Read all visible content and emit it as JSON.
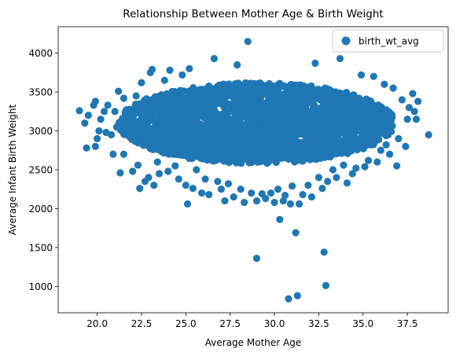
{
  "chart_data": {
    "type": "scatter",
    "title": "Relationship Between Mother Age & Birth Weight",
    "xlabel": "Average Mother Age",
    "ylabel": "Average Infant Birth Weight",
    "xlim": [
      17.8,
      39.8
    ],
    "ylim": [
      660,
      4340
    ],
    "xticks": [
      "20.0",
      "22.5",
      "25.0",
      "27.5",
      "30.0",
      "32.5",
      "35.0",
      "37.5"
    ],
    "xtick_values": [
      20.0,
      22.5,
      25.0,
      27.5,
      30.0,
      32.5,
      35.0,
      37.5
    ],
    "yticks": [
      "1000",
      "1500",
      "2000",
      "2500",
      "3000",
      "3500",
      "4000"
    ],
    "ytick_values": [
      1000,
      1500,
      2000,
      2500,
      3000,
      3500,
      4000
    ],
    "grid": false,
    "legend": {
      "placement": "top-right",
      "entries": [
        "birth_wt_avg"
      ]
    },
    "colors": {
      "marker": "#1f77b4"
    },
    "cluster": {
      "description_values": {
        "x_center": 29.0,
        "x_half_width": 7.8,
        "y_center": 3100,
        "y_half_height": 520
      }
    },
    "series": [
      {
        "name": "birth_wt_avg",
        "points": [
          [
            19.0,
            3260
          ],
          [
            19.3,
            3100
          ],
          [
            19.4,
            2780
          ],
          [
            19.5,
            3200
          ],
          [
            19.8,
            3330
          ],
          [
            19.9,
            2800
          ],
          [
            19.9,
            3380
          ],
          [
            20.0,
            2900
          ],
          [
            20.1,
            3000
          ],
          [
            20.2,
            3150
          ],
          [
            20.4,
            3250
          ],
          [
            20.5,
            2980
          ],
          [
            20.6,
            3330
          ],
          [
            20.8,
            2950
          ],
          [
            20.9,
            2700
          ],
          [
            21.0,
            3250
          ],
          [
            21.1,
            3050
          ],
          [
            21.2,
            3510
          ],
          [
            21.3,
            2460
          ],
          [
            21.5,
            3420
          ],
          [
            21.5,
            2700
          ],
          [
            21.7,
            3200
          ],
          [
            21.8,
            2950
          ],
          [
            22.0,
            2480
          ],
          [
            22.2,
            3450
          ],
          [
            22.3,
            2560
          ],
          [
            22.4,
            2260
          ],
          [
            22.5,
            3620
          ],
          [
            22.7,
            2350
          ],
          [
            22.9,
            2400
          ],
          [
            23.0,
            3750
          ],
          [
            23.1,
            3790
          ],
          [
            23.2,
            2300
          ],
          [
            23.4,
            2600
          ],
          [
            23.5,
            2450
          ],
          [
            23.8,
            3650
          ],
          [
            24.0,
            2480
          ],
          [
            24.1,
            3780
          ],
          [
            24.3,
            2700
          ],
          [
            24.4,
            2550
          ],
          [
            24.6,
            2380
          ],
          [
            24.8,
            3720
          ],
          [
            25.0,
            2300
          ],
          [
            25.1,
            2060
          ],
          [
            25.2,
            3800
          ],
          [
            25.4,
            2260
          ],
          [
            25.6,
            2500
          ],
          [
            25.9,
            2200
          ],
          [
            26.1,
            2380
          ],
          [
            26.3,
            2180
          ],
          [
            26.6,
            3930
          ],
          [
            26.8,
            2350
          ],
          [
            27.0,
            2250
          ],
          [
            27.2,
            2100
          ],
          [
            27.4,
            2320
          ],
          [
            27.7,
            2150
          ],
          [
            27.9,
            3850
          ],
          [
            28.1,
            2250
          ],
          [
            28.3,
            2080
          ],
          [
            28.5,
            4150
          ],
          [
            28.7,
            2200
          ],
          [
            29.0,
            2100
          ],
          [
            29.0,
            1360
          ],
          [
            29.3,
            2190
          ],
          [
            29.5,
            2130
          ],
          [
            29.8,
            2200
          ],
          [
            30.0,
            2080
          ],
          [
            30.2,
            2250
          ],
          [
            30.3,
            1860
          ],
          [
            30.5,
            2100
          ],
          [
            30.6,
            2170
          ],
          [
            30.8,
            840
          ],
          [
            30.9,
            2060
          ],
          [
            31.0,
            2290
          ],
          [
            31.2,
            1690
          ],
          [
            31.3,
            880
          ],
          [
            31.4,
            2060
          ],
          [
            31.6,
            2180
          ],
          [
            31.9,
            2300
          ],
          [
            32.1,
            2150
          ],
          [
            32.3,
            3870
          ],
          [
            32.5,
            2400
          ],
          [
            32.7,
            2260
          ],
          [
            32.8,
            1440
          ],
          [
            32.9,
            1010
          ],
          [
            33.0,
            2350
          ],
          [
            33.3,
            2500
          ],
          [
            33.5,
            2400
          ],
          [
            33.7,
            3930
          ],
          [
            33.9,
            2560
          ],
          [
            34.1,
            2330
          ],
          [
            34.4,
            2450
          ],
          [
            34.6,
            2520
          ],
          [
            34.9,
            3720
          ],
          [
            35.1,
            2540
          ],
          [
            35.3,
            2620
          ],
          [
            35.6,
            3700
          ],
          [
            35.8,
            2600
          ],
          [
            36.0,
            2750
          ],
          [
            36.2,
            3600
          ],
          [
            36.3,
            2820
          ],
          [
            36.5,
            2700
          ],
          [
            36.7,
            3550
          ],
          [
            36.9,
            2550
          ],
          [
            37.0,
            2900
          ],
          [
            37.2,
            3400
          ],
          [
            37.4,
            2800
          ],
          [
            37.5,
            3150
          ],
          [
            37.6,
            3300
          ],
          [
            37.8,
            3480
          ],
          [
            37.9,
            3250
          ],
          [
            38.0,
            3150
          ],
          [
            38.1,
            3380
          ],
          [
            38.7,
            2950
          ]
        ]
      }
    ]
  }
}
